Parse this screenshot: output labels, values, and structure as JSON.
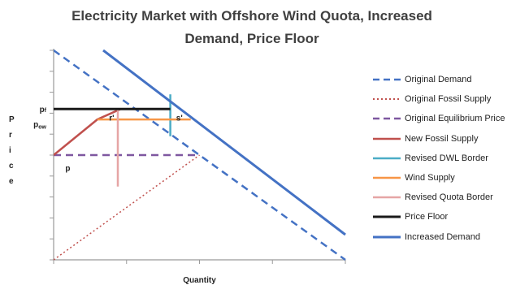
{
  "chart_data": {
    "type": "line",
    "title": [
      "Electricity Market with Offshore Wind Quota, Increased",
      "Demand, Price Floor"
    ],
    "xlabel": "Quantity",
    "ylabel": "Price",
    "ylabel_letters": [
      "P",
      "r",
      "i",
      "c",
      "e"
    ],
    "xlim": [
      0,
      10
    ],
    "ylim": [
      0,
      10
    ],
    "axis_ticks": {
      "show_numbers": false,
      "x_count": 4,
      "y_count": 10
    },
    "grid": false,
    "legend_position": "right",
    "series": [
      {
        "name": "Original Demand",
        "color": "#4472C4",
        "style": "dashed",
        "width": 2.5,
        "points": [
          [
            0,
            10
          ],
          [
            10,
            0
          ]
        ]
      },
      {
        "name": "Original Fossil Supply",
        "color": "#C0504D",
        "style": "dotted",
        "width": 1.5,
        "points": [
          [
            0,
            0
          ],
          [
            5,
            5
          ]
        ]
      },
      {
        "name": "Original Equilibrium Price",
        "color": "#7E57A0",
        "style": "dashed",
        "width": 2.5,
        "points": [
          [
            0,
            5
          ],
          [
            5,
            5
          ]
        ]
      },
      {
        "name": "New Fossil Supply",
        "color": "#C0504D",
        "style": "solid",
        "width": 2.5,
        "points": [
          [
            0,
            5
          ],
          [
            1.5,
            6.7
          ],
          [
            2.3,
            7.2
          ]
        ]
      },
      {
        "name": "Revised DWL Border",
        "color": "#4BACC6",
        "style": "solid",
        "width": 2.5,
        "points": [
          [
            4,
            7.9
          ],
          [
            4,
            5.9
          ]
        ]
      },
      {
        "name": "Wind Supply",
        "color": "#F79646",
        "style": "solid",
        "width": 2.5,
        "points": [
          [
            1.5,
            6.7
          ],
          [
            4.7,
            6.7
          ]
        ]
      },
      {
        "name": "Revised Quota Border",
        "color": "#E6A5A5",
        "style": "solid",
        "width": 2.5,
        "points": [
          [
            2.2,
            7.2
          ],
          [
            2.2,
            3.5
          ]
        ]
      },
      {
        "name": "Price Floor",
        "color": "#1A1A1A",
        "style": "solid",
        "width": 3,
        "points": [
          [
            0,
            7.2
          ],
          [
            4,
            7.2
          ]
        ]
      },
      {
        "name": "Increased Demand",
        "color": "#4472C4",
        "style": "solid",
        "width": 3,
        "points": [
          [
            1.7,
            10
          ],
          [
            10,
            1.2
          ]
        ]
      }
    ],
    "annotations": [
      {
        "text": "pf",
        "x": -0.25,
        "y": 7.2
      },
      {
        "text": "pow",
        "x": -0.25,
        "y": 6.5
      },
      {
        "text": "p",
        "x": 0.4,
        "y": 4.4
      },
      {
        "text": "r'",
        "x": 1.9,
        "y": 6.8
      },
      {
        "text": "s'",
        "x": 4.2,
        "y": 6.8
      }
    ]
  }
}
